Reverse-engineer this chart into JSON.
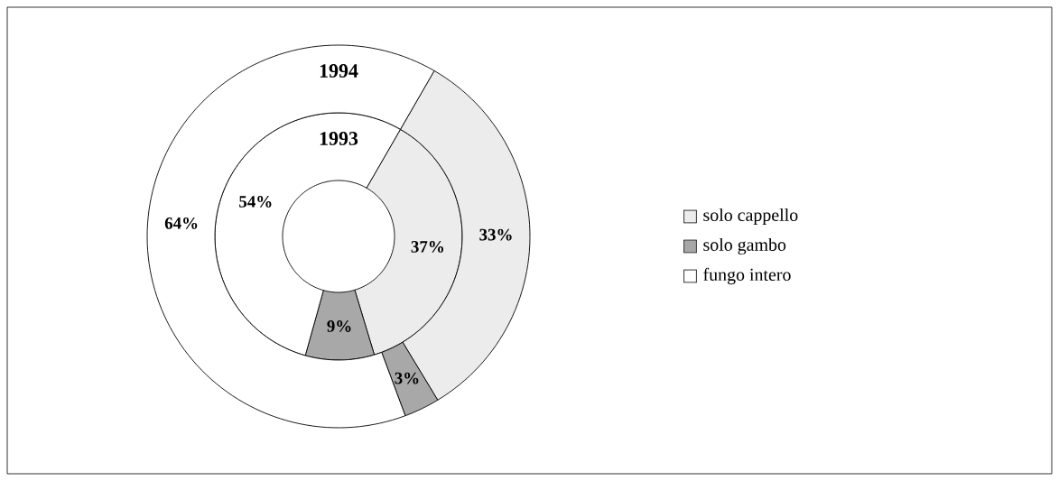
{
  "chart_data": {
    "type": "donut",
    "categories": [
      "solo cappello",
      "solo gambo",
      "fungo intero"
    ],
    "colors": [
      "#ececec",
      "#a8a8a8",
      "#ffffff"
    ],
    "series": [
      {
        "name": "1993",
        "values": [
          37,
          9,
          54
        ],
        "value_labels": [
          "37%",
          "9%",
          "54%"
        ]
      },
      {
        "name": "1994",
        "values": [
          33,
          3,
          64
        ],
        "value_labels": [
          "33%",
          "3%",
          "64%"
        ]
      }
    ],
    "legend": "right"
  }
}
